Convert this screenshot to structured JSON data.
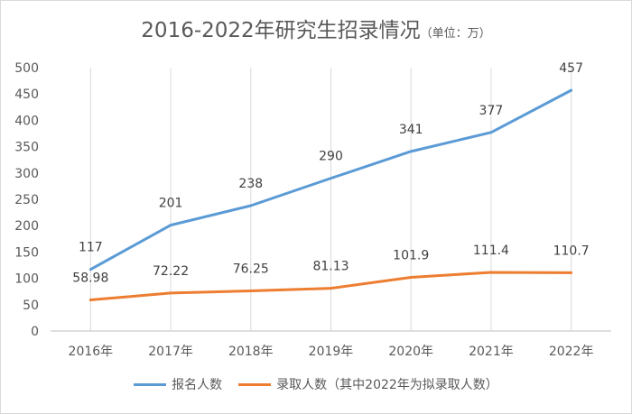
{
  "chart_data": {
    "type": "line",
    "title": "2016-2022年研究生招录情况",
    "subtitle": "（单位：万）",
    "categories": [
      "2016年",
      "2017年",
      "2018年",
      "2019年",
      "2020年",
      "2021年",
      "2022年"
    ],
    "series": [
      {
        "name": "报名人数",
        "values": [
          117,
          201,
          238,
          290,
          341,
          377,
          457
        ],
        "labels": [
          "117",
          "201",
          "238",
          "290",
          "341",
          "377",
          "457"
        ],
        "color": "#5b9bd5"
      },
      {
        "name": "录取人数（其中2022年为拟录取人数）",
        "values": [
          58.98,
          72.22,
          76.25,
          81.13,
          101.9,
          111.4,
          110.7
        ],
        "labels": [
          "58.98",
          "72.22",
          "76.25",
          "81.13",
          "101.9",
          "111.4",
          "110.7"
        ],
        "color": "#ed7d31"
      }
    ],
    "ylim": [
      0,
      500
    ],
    "yticks": [
      0,
      50,
      100,
      150,
      200,
      250,
      300,
      350,
      400,
      450,
      500
    ],
    "grid": "vertical",
    "legend": "bottom"
  }
}
